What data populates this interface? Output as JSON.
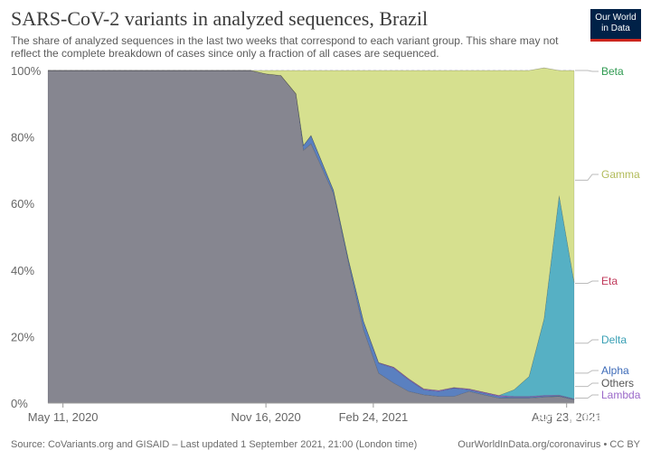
{
  "header": {
    "title": "SARS-CoV-2 variants in analyzed sequences, Brazil",
    "subtitle": "The share of analyzed sequences in the last two weeks that correspond to each variant group. This share may not reflect the complete breakdown of cases since only a fraction of all cases are sequenced.",
    "logo_line1": "Our World",
    "logo_line2": "in Data"
  },
  "footer": {
    "source": "Source: CoVariants.org and GISAID – Last updated 1 September 2021, 21:00 (London time)",
    "credit": "OurWorldInData.org/coronavirus • CC BY",
    "watermark": "知乎 @图图知道"
  },
  "chart_data": {
    "type": "area",
    "stacked": true,
    "title": "SARS-CoV-2 variants in analyzed sequences, Brazil",
    "x_start": "2020-04-27",
    "x_end": "2021-08-30",
    "x_tick_labels": [
      "May 11, 2020",
      "Nov 16, 2020",
      "Feb 24, 2021",
      "Aug 23, 2021"
    ],
    "x_tick_dates": [
      "2020-05-11",
      "2020-11-16",
      "2021-02-24",
      "2021-08-23"
    ],
    "y_ticks": [
      "0%",
      "20%",
      "40%",
      "60%",
      "80%",
      "100%"
    ],
    "ylim": [
      0,
      100
    ],
    "x": [
      "2020-04-27",
      "2020-11-02",
      "2020-11-16",
      "2020-11-30",
      "2020-12-14",
      "2020-12-21",
      "2020-12-28",
      "2021-01-04",
      "2021-01-18",
      "2021-02-01",
      "2021-02-15",
      "2021-03-01",
      "2021-03-15",
      "2021-03-29",
      "2021-04-12",
      "2021-04-26",
      "2021-05-10",
      "2021-05-24",
      "2021-06-07",
      "2021-06-21",
      "2021-07-05",
      "2021-07-19",
      "2021-08-02",
      "2021-08-16",
      "2021-08-30"
    ],
    "series": [
      {
        "name": "Others",
        "color": "#868690",
        "values": [
          100,
          100,
          99,
          98.5,
          93,
          76,
          78,
          73,
          63,
          42,
          22,
          9,
          6,
          3.5,
          2.5,
          2,
          2,
          3.5,
          2.5,
          1.5,
          1.5,
          1.5,
          1.8,
          2,
          1
        ]
      },
      {
        "name": "Alpha",
        "color": "#5a80c0",
        "values": [
          0,
          0,
          0,
          0,
          0,
          1.5,
          2.5,
          2,
          1,
          1,
          2.5,
          3,
          4.5,
          3.5,
          1.5,
          1.5,
          2.5,
          0.5,
          0.5,
          0.5,
          0.3,
          0.3,
          0.3,
          0.2,
          0.2
        ]
      },
      {
        "name": "Lambda",
        "color": "#9b69c9",
        "values": [
          0,
          0,
          0,
          0,
          0,
          0,
          0,
          0,
          0,
          0,
          0,
          0.2,
          0.3,
          0.3,
          0.3,
          0.3,
          0.2,
          0.3,
          0.3,
          0.3,
          0.2,
          0.2,
          0.2,
          0.2,
          0.1
        ]
      },
      {
        "name": "Delta",
        "color": "#56b0c4",
        "values": [
          0,
          0,
          0,
          0,
          0,
          0,
          0,
          0,
          0,
          0,
          0,
          0,
          0,
          0,
          0,
          0,
          0,
          0,
          0,
          0,
          2,
          6,
          23,
          60,
          35
        ]
      },
      {
        "name": "Eta",
        "color": "#c0385a",
        "values": [
          0,
          0,
          0,
          0,
          0,
          0,
          0,
          0,
          0,
          0,
          0,
          0,
          0,
          0,
          0,
          0,
          0,
          0,
          0,
          0,
          0,
          0,
          0,
          0,
          0
        ]
      },
      {
        "name": "Gamma",
        "color": "#d6e08f",
        "values": [
          0,
          0,
          1,
          1.5,
          7,
          22.5,
          19.5,
          25,
          36,
          57,
          75.5,
          87.8,
          89.2,
          92.7,
          95.7,
          96.2,
          95.3,
          95.7,
          96.7,
          97.7,
          96,
          92,
          75.5,
          37.6,
          63.7
        ]
      },
      {
        "name": "Beta",
        "color": "#57b86f",
        "values": [
          0,
          0,
          0,
          0,
          0,
          0,
          0,
          0,
          0,
          0,
          0,
          0,
          0,
          0,
          0,
          0,
          0,
          0,
          0,
          0,
          0,
          0,
          0,
          0,
          0
        ]
      }
    ],
    "legend": [
      {
        "name": "Beta",
        "color": "#2f9a51",
        "value": 100
      },
      {
        "name": "Gamma",
        "color": "#b2bb5a",
        "value": 67
      },
      {
        "name": "Eta",
        "color": "#c0385a",
        "value": 36
      },
      {
        "name": "Delta",
        "color": "#3aa0b5",
        "value": 18
      },
      {
        "name": "Alpha",
        "color": "#3d6bb8",
        "value": 9
      },
      {
        "name": "Others",
        "color": "#555555",
        "value": 5
      },
      {
        "name": "Lambda",
        "color": "#9b69c9",
        "value": 1.5
      }
    ],
    "legend_placement": "right",
    "grid": true
  }
}
